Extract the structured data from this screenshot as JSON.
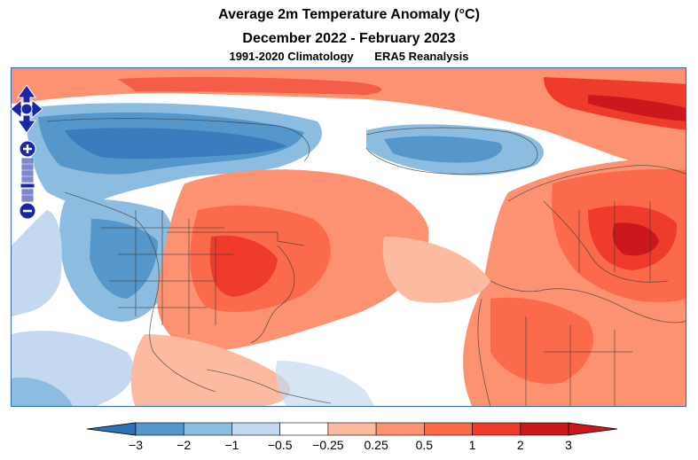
{
  "header": {
    "title": "Average 2m Temperature Anomaly (°C)",
    "period": "December 2022 - February 2023",
    "climatology": "1991-2020 Climatology",
    "dataset": "ERA5 Reanalysis"
  },
  "controls": {
    "pan_icon": "four-way-arrow-pan-icon",
    "zoom_in_icon": "plus-icon",
    "zoom_out_icon": "minus-icon"
  },
  "colorbar": {
    "labels": [
      "−3",
      "−2",
      "−1",
      "−0.5",
      "−0.25",
      "0.25",
      "0.5",
      "1",
      "2",
      "3"
    ],
    "colors": [
      "#2d72b8",
      "#5597cb",
      "#8cbde0",
      "#c4d9f0",
      "#ffffff",
      "#fcbba1",
      "#fc9272",
      "#fb6a4a",
      "#ef3b2c",
      "#cb181d"
    ],
    "low_extend_color": "#2d72b8",
    "high_extend_color": "#cb181d"
  }
}
